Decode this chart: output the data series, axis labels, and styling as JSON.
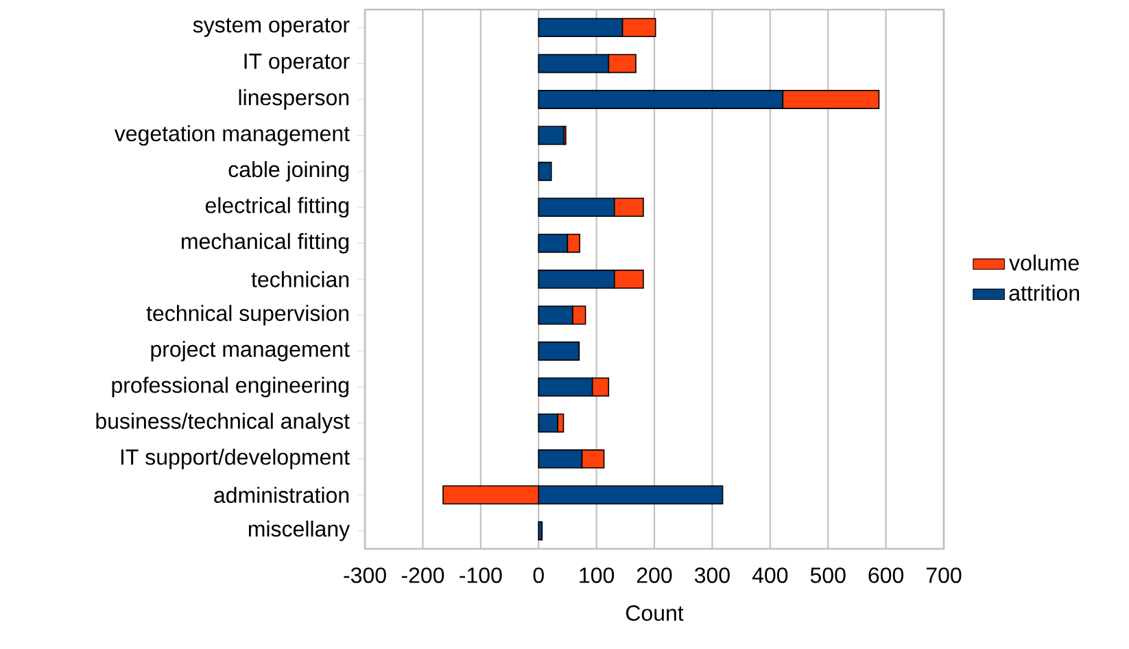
{
  "chart_data": {
    "type": "bar",
    "orientation": "horizontal",
    "stacked": true,
    "xlabel": "Count",
    "categories": [
      "system operator",
      "IT operator",
      "linesperson",
      "vegetation management",
      "cable joining",
      "electrical fitting",
      "mechanical fitting",
      "technician",
      "technical supervision",
      "project management",
      "professional engineering",
      "business/technical analyst",
      "IT support/development",
      "administration",
      "miscellany"
    ],
    "series": [
      {
        "name": "attrition",
        "color": "#004586",
        "values": [
          145,
          121,
          422,
          44,
          22,
          131,
          50,
          131,
          59,
          70,
          93,
          33,
          75,
          318,
          6
        ]
      },
      {
        "name": "volume",
        "color": "#ff420e",
        "values": [
          57,
          47,
          166,
          3,
          null,
          50,
          21,
          50,
          22,
          0,
          28,
          10,
          38,
          -165,
          0
        ]
      }
    ],
    "xlim": [
      -300,
      700
    ],
    "xticks": [
      -300,
      -200,
      -100,
      0,
      100,
      200,
      300,
      400,
      500,
      600,
      700
    ],
    "grid": "x",
    "legend": "right"
  }
}
